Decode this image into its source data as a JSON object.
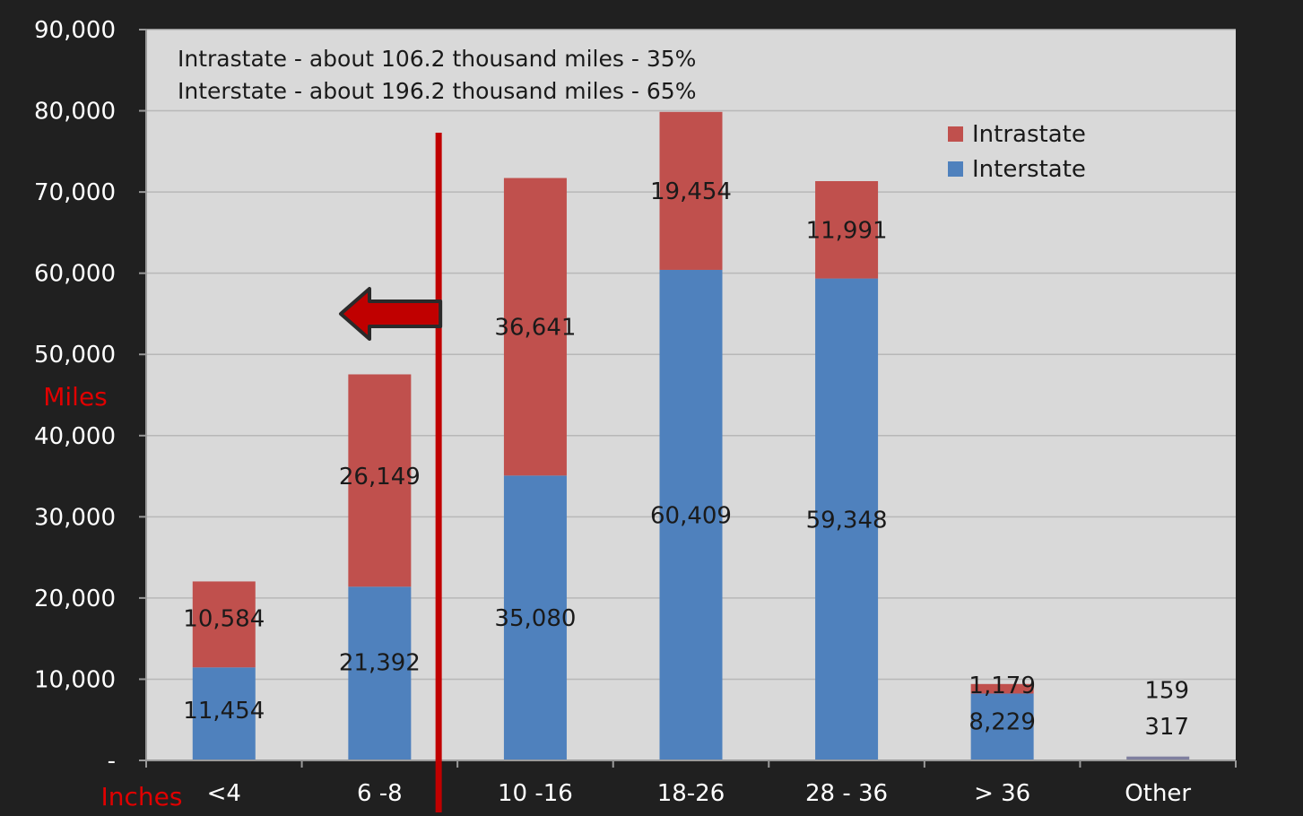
{
  "colors": {
    "intrastate": "#c0504d",
    "interstate": "#4f81bd",
    "other": "#7f7f9f",
    "plot_bg": "#d9d9d9",
    "frame_bg": "#202020",
    "annotation_red": "#e00000",
    "divider_red": "#c00000",
    "grid": "#b8b8b8",
    "axis_text_light": "#ffffff",
    "plot_text_dark": "#1a1a1a"
  },
  "chart_data": {
    "type": "bar",
    "stacked": true,
    "categories": [
      "<4",
      "6 -8",
      "10 -16",
      "18-26",
      "28 - 36",
      "> 36",
      "Other"
    ],
    "series": [
      {
        "name": "Interstate",
        "values": [
          11454,
          21392,
          35080,
          60409,
          59348,
          8229,
          317
        ],
        "labels": [
          "11,454",
          "21,392",
          "35,080",
          "60,409",
          "59,348",
          "8,229",
          "317"
        ]
      },
      {
        "name": "Intrastate",
        "values": [
          10584,
          26149,
          36641,
          19454,
          11991,
          1179,
          159
        ],
        "labels": [
          "10,584",
          "26,149",
          "36,641",
          "19,454",
          "11,991",
          "1,179",
          "159"
        ]
      }
    ],
    "ylim": [
      0,
      90000
    ],
    "yticks": [
      0,
      10000,
      20000,
      30000,
      40000,
      50000,
      60000,
      70000,
      80000,
      90000
    ],
    "ytick_labels": [
      "-",
      "10,000",
      "20,000",
      "30,000",
      "40,000",
      "50,000",
      "60,000",
      "70,000",
      "80,000",
      "90,000"
    ],
    "ylabel": "Miles",
    "xlabel": "Inches",
    "annotations": [
      "Intrastate - about 106.2 thousand miles - 35%",
      "Interstate - about 196.2 thousand miles - 65%"
    ],
    "legend": {
      "position": "top-right",
      "entries": [
        "Intrastate",
        "Interstate"
      ]
    },
    "grid": true,
    "divider": {
      "between": [
        "6 -8",
        "10 -16"
      ],
      "arrow_direction": "left",
      "arrow_level": 55000
    }
  }
}
